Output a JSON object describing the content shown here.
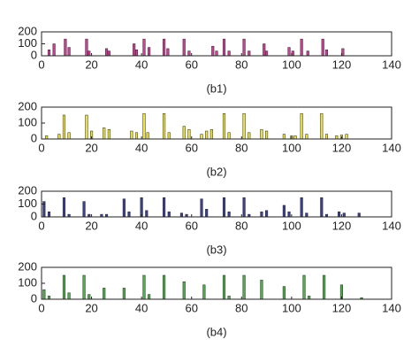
{
  "chart_data": [
    {
      "type": "bar",
      "title": "(b1)",
      "color": "#cc3f96",
      "xlim": [
        0,
        140
      ],
      "ylim": [
        0,
        200
      ],
      "xticks": [
        0,
        20,
        40,
        60,
        80,
        100,
        120,
        140
      ],
      "yticks": [
        0,
        100,
        200
      ],
      "x": [
        3,
        5,
        9.5,
        11,
        18,
        19,
        26,
        27,
        37,
        38,
        41,
        43,
        49,
        50.5,
        57,
        59,
        68.5,
        70,
        73,
        75,
        81,
        83,
        89,
        90,
        99,
        100.5,
        104,
        106.5,
        112.5,
        114,
        120.5
      ],
      "values": [
        50,
        100,
        140,
        70,
        140,
        40,
        60,
        40,
        100,
        50,
        140,
        70,
        140,
        60,
        140,
        40,
        80,
        40,
        140,
        40,
        140,
        40,
        100,
        40,
        70,
        40,
        140,
        40,
        140,
        50,
        60
      ]
    },
    {
      "type": "bar",
      "title": "(b2)",
      "color": "#efe23a",
      "xlim": [
        0,
        140
      ],
      "ylim": [
        0,
        200
      ],
      "xticks": [
        0,
        20,
        40,
        60,
        80,
        100,
        120,
        140
      ],
      "yticks": [
        0,
        100,
        200
      ],
      "x": [
        2,
        7,
        9,
        11,
        18,
        20,
        25,
        27,
        36,
        38,
        41,
        42.5,
        49,
        51,
        57,
        59,
        64,
        66,
        68,
        73,
        75,
        81,
        83,
        88,
        90,
        97,
        100,
        101.5,
        104,
        106,
        112,
        114,
        118,
        120,
        122
      ],
      "values": [
        20,
        30,
        150,
        40,
        150,
        50,
        70,
        60,
        50,
        40,
        160,
        40,
        160,
        40,
        80,
        60,
        30,
        50,
        60,
        160,
        40,
        160,
        40,
        60,
        50,
        30,
        20,
        20,
        160,
        30,
        160,
        30,
        20,
        25,
        30
      ]
    },
    {
      "type": "bar",
      "title": "(b3)",
      "color": "#3b3f90",
      "xlim": [
        0,
        140
      ],
      "ylim": [
        0,
        200
      ],
      "xticks": [
        0,
        20,
        40,
        60,
        80,
        100,
        120,
        140
      ],
      "yticks": [
        0,
        100,
        200
      ],
      "x": [
        1,
        3,
        9,
        11,
        17,
        19,
        24,
        26,
        33,
        35,
        40,
        42,
        49,
        51,
        56,
        58,
        64,
        66,
        73,
        75,
        81,
        83,
        88,
        90,
        97,
        99,
        104,
        106,
        112,
        114,
        119,
        121,
        127
      ],
      "values": [
        120,
        40,
        150,
        20,
        120,
        20,
        20,
        20,
        140,
        40,
        150,
        50,
        150,
        40,
        30,
        20,
        140,
        60,
        150,
        40,
        150,
        20,
        40,
        50,
        90,
        40,
        150,
        30,
        150,
        20,
        40,
        30,
        30
      ]
    },
    {
      "type": "bar",
      "title": "(b4)",
      "color": "#4daf4a",
      "xlim": [
        0,
        140
      ],
      "ylim": [
        0,
        200
      ],
      "xticks": [
        0,
        20,
        40,
        60,
        80,
        100,
        120,
        140
      ],
      "yticks": [
        0,
        100,
        200
      ],
      "x": [
        1,
        3,
        9,
        11,
        17,
        19,
        25,
        33,
        41,
        43,
        49,
        57,
        65,
        73,
        75,
        81,
        88,
        97,
        105,
        107,
        113,
        120,
        128
      ],
      "values": [
        60,
        20,
        150,
        40,
        150,
        30,
        70,
        70,
        150,
        30,
        150,
        110,
        90,
        150,
        20,
        150,
        120,
        80,
        150,
        20,
        150,
        90,
        10
      ]
    }
  ]
}
